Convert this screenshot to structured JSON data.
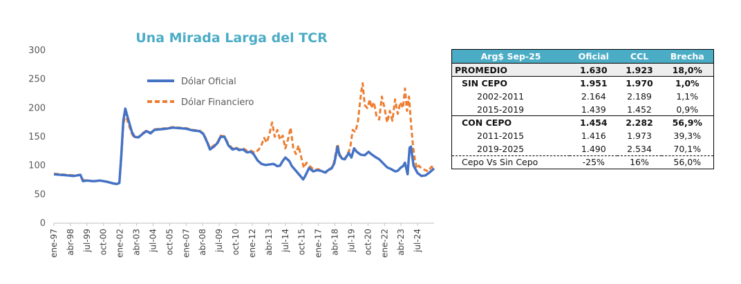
{
  "chart_data": {
    "type": "line",
    "title": "Una Mirada Larga del TCR",
    "title_color": "#4bacc6",
    "xlabel": "",
    "ylabel": "",
    "ylim": [
      0,
      300
    ],
    "yticks": [
      0,
      50,
      100,
      150,
      200,
      250,
      300
    ],
    "x_range": [
      1997.0,
      2025.75
    ],
    "x_ticks": [
      {
        "label": "ene-97",
        "year": 1997.0
      },
      {
        "label": "abr-98",
        "year": 1998.25
      },
      {
        "label": "jul-99",
        "year": 1999.5
      },
      {
        "label": "oct-00",
        "year": 2000.75
      },
      {
        "label": "ene-02",
        "year": 2002.0
      },
      {
        "label": "abr-03",
        "year": 2003.25
      },
      {
        "label": "jul-04",
        "year": 2004.5
      },
      {
        "label": "oct-05",
        "year": 2005.75
      },
      {
        "label": "ene-07",
        "year": 2007.0
      },
      {
        "label": "abr-08",
        "year": 2008.25
      },
      {
        "label": "jul-09",
        "year": 2009.5
      },
      {
        "label": "oct-10",
        "year": 2010.75
      },
      {
        "label": "ene-12",
        "year": 2012.0
      },
      {
        "label": "abr-13",
        "year": 2013.25
      },
      {
        "label": "jul-14",
        "year": 2014.5
      },
      {
        "label": "oct-15",
        "year": 2015.75
      },
      {
        "label": "ene-17",
        "year": 2017.0
      },
      {
        "label": "abr-18",
        "year": 2018.25
      },
      {
        "label": "jul-19",
        "year": 2019.5
      },
      {
        "label": "oct-20",
        "year": 2020.75
      },
      {
        "label": "ene-22",
        "year": 2022.0
      },
      {
        "label": "abr-23",
        "year": 2023.25
      },
      {
        "label": "jul-24",
        "year": 2024.5
      }
    ],
    "legend_position": "top-left",
    "grid": false,
    "series": [
      {
        "name": "Dólar Oficial",
        "color": "#4472c4",
        "style": "solid",
        "points": [
          [
            1997.0,
            85
          ],
          [
            1997.5,
            84
          ],
          [
            1998.0,
            83
          ],
          [
            1998.5,
            82
          ],
          [
            1999.0,
            84
          ],
          [
            1999.2,
            73
          ],
          [
            1999.5,
            74
          ],
          [
            2000.0,
            73
          ],
          [
            2000.5,
            74
          ],
          [
            2001.0,
            72
          ],
          [
            2001.5,
            69
          ],
          [
            2001.75,
            68
          ],
          [
            2001.95,
            70
          ],
          [
            2002.1,
            120
          ],
          [
            2002.25,
            178
          ],
          [
            2002.4,
            199
          ],
          [
            2002.6,
            182
          ],
          [
            2002.9,
            158
          ],
          [
            2003.1,
            150
          ],
          [
            2003.4,
            149
          ],
          [
            2003.7,
            155
          ],
          [
            2004.0,
            160
          ],
          [
            2004.3,
            156
          ],
          [
            2004.6,
            162
          ],
          [
            2005.0,
            163
          ],
          [
            2005.5,
            164
          ],
          [
            2006.0,
            166
          ],
          [
            2006.5,
            165
          ],
          [
            2007.0,
            164
          ],
          [
            2007.5,
            161
          ],
          [
            2008.0,
            160
          ],
          [
            2008.3,
            155
          ],
          [
            2008.6,
            140
          ],
          [
            2008.8,
            128
          ],
          [
            2009.1,
            133
          ],
          [
            2009.4,
            140
          ],
          [
            2009.6,
            150
          ],
          [
            2009.9,
            150
          ],
          [
            2010.2,
            135
          ],
          [
            2010.5,
            128
          ],
          [
            2010.8,
            130
          ],
          [
            2011.0,
            127
          ],
          [
            2011.3,
            128
          ],
          [
            2011.6,
            123
          ],
          [
            2011.9,
            124
          ],
          [
            2012.1,
            120
          ],
          [
            2012.4,
            109
          ],
          [
            2012.7,
            103
          ],
          [
            2013.0,
            101
          ],
          [
            2013.3,
            102
          ],
          [
            2013.6,
            103
          ],
          [
            2013.9,
            99
          ],
          [
            2014.1,
            100
          ],
          [
            2014.3,
            108
          ],
          [
            2014.5,
            114
          ],
          [
            2014.8,
            108
          ],
          [
            2015.0,
            99
          ],
          [
            2015.3,
            91
          ],
          [
            2015.6,
            83
          ],
          [
            2015.85,
            76
          ],
          [
            2016.0,
            82
          ],
          [
            2016.3,
            96
          ],
          [
            2016.6,
            90
          ],
          [
            2016.9,
            92
          ],
          [
            2017.2,
            91
          ],
          [
            2017.5,
            88
          ],
          [
            2017.8,
            93
          ],
          [
            2018.0,
            95
          ],
          [
            2018.2,
            104
          ],
          [
            2018.45,
            133
          ],
          [
            2018.6,
            118
          ],
          [
            2018.8,
            112
          ],
          [
            2019.0,
            111
          ],
          [
            2019.3,
            122
          ],
          [
            2019.5,
            114
          ],
          [
            2019.7,
            130
          ],
          [
            2019.9,
            124
          ],
          [
            2020.2,
            119
          ],
          [
            2020.5,
            118
          ],
          [
            2020.8,
            124
          ],
          [
            2021.0,
            120
          ],
          [
            2021.3,
            115
          ],
          [
            2021.6,
            111
          ],
          [
            2021.9,
            104
          ],
          [
            2022.2,
            97
          ],
          [
            2022.5,
            94
          ],
          [
            2022.8,
            90
          ],
          [
            2023.0,
            91
          ],
          [
            2023.25,
            97
          ],
          [
            2023.4,
            99
          ],
          [
            2023.55,
            105
          ],
          [
            2023.75,
            85
          ],
          [
            2023.9,
            131
          ],
          [
            2024.0,
            133
          ],
          [
            2024.2,
            100
          ],
          [
            2024.5,
            87
          ],
          [
            2024.8,
            82
          ],
          [
            2025.1,
            83
          ],
          [
            2025.4,
            88
          ],
          [
            2025.75,
            95
          ]
        ]
      },
      {
        "name": "Dólar Financiero",
        "color": "#ed7d31",
        "style": "dashed",
        "points": [
          [
            1997.0,
            86
          ],
          [
            1997.5,
            85
          ],
          [
            1998.0,
            84
          ],
          [
            1998.5,
            83
          ],
          [
            1999.0,
            84
          ],
          [
            1999.2,
            75
          ],
          [
            1999.5,
            74
          ],
          [
            2000.0,
            73
          ],
          [
            2000.5,
            74
          ],
          [
            2001.0,
            72
          ],
          [
            2001.5,
            69
          ],
          [
            2001.75,
            68
          ],
          [
            2001.95,
            70
          ],
          [
            2002.1,
            115
          ],
          [
            2002.25,
            170
          ],
          [
            2002.4,
            191
          ],
          [
            2002.6,
            175
          ],
          [
            2002.9,
            155
          ],
          [
            2003.1,
            148
          ],
          [
            2003.4,
            150
          ],
          [
            2003.7,
            156
          ],
          [
            2004.0,
            161
          ],
          [
            2004.3,
            157
          ],
          [
            2004.6,
            163
          ],
          [
            2005.0,
            164
          ],
          [
            2005.5,
            165
          ],
          [
            2006.0,
            167
          ],
          [
            2006.5,
            166
          ],
          [
            2007.0,
            165
          ],
          [
            2007.5,
            162
          ],
          [
            2008.0,
            161
          ],
          [
            2008.3,
            156
          ],
          [
            2008.6,
            142
          ],
          [
            2008.8,
            130
          ],
          [
            2009.1,
            135
          ],
          [
            2009.4,
            142
          ],
          [
            2009.6,
            152
          ],
          [
            2009.9,
            151
          ],
          [
            2010.2,
            137
          ],
          [
            2010.5,
            130
          ],
          [
            2010.8,
            131
          ],
          [
            2011.0,
            128
          ],
          [
            2011.3,
            130
          ],
          [
            2011.6,
            126
          ],
          [
            2011.9,
            126
          ],
          [
            2012.2,
            122
          ],
          [
            2012.5,
            128
          ],
          [
            2012.7,
            136
          ],
          [
            2012.9,
            148
          ],
          [
            2013.1,
            140
          ],
          [
            2013.3,
            155
          ],
          [
            2013.5,
            175
          ],
          [
            2013.7,
            150
          ],
          [
            2013.9,
            162
          ],
          [
            2014.1,
            145
          ],
          [
            2014.3,
            152
          ],
          [
            2014.5,
            130
          ],
          [
            2014.7,
            145
          ],
          [
            2014.9,
            166
          ],
          [
            2015.1,
            130
          ],
          [
            2015.3,
            120
          ],
          [
            2015.5,
            135
          ],
          [
            2015.7,
            115
          ],
          [
            2015.9,
            96
          ],
          [
            2016.1,
            105
          ],
          [
            2016.4,
            98
          ],
          [
            2016.7,
            92
          ],
          [
            2017.0,
            94
          ],
          [
            2017.3,
            90
          ],
          [
            2017.6,
            88
          ],
          [
            2017.9,
            95
          ],
          [
            2018.1,
            98
          ],
          [
            2018.3,
            120
          ],
          [
            2018.45,
            138
          ],
          [
            2018.6,
            120
          ],
          [
            2018.8,
            113
          ],
          [
            2019.0,
            112
          ],
          [
            2019.2,
            120
          ],
          [
            2019.4,
            130
          ],
          [
            2019.6,
            162
          ],
          [
            2019.8,
            158
          ],
          [
            2020.0,
            178
          ],
          [
            2020.1,
            200
          ],
          [
            2020.25,
            230
          ],
          [
            2020.35,
            243
          ],
          [
            2020.5,
            205
          ],
          [
            2020.7,
            200
          ],
          [
            2020.9,
            215
          ],
          [
            2021.0,
            200
          ],
          [
            2021.2,
            210
          ],
          [
            2021.4,
            185
          ],
          [
            2021.6,
            180
          ],
          [
            2021.8,
            220
          ],
          [
            2022.0,
            200
          ],
          [
            2022.2,
            175
          ],
          [
            2022.4,
            195
          ],
          [
            2022.6,
            178
          ],
          [
            2022.8,
            215
          ],
          [
            2023.0,
            190
          ],
          [
            2023.2,
            210
          ],
          [
            2023.4,
            200
          ],
          [
            2023.55,
            234
          ],
          [
            2023.7,
            195
          ],
          [
            2023.85,
            220
          ],
          [
            2024.0,
            175
          ],
          [
            2024.15,
            135
          ],
          [
            2024.3,
            110
          ],
          [
            2024.45,
            95
          ],
          [
            2024.6,
            100
          ],
          [
            2024.8,
            95
          ],
          [
            2025.0,
            93
          ],
          [
            2025.3,
            90
          ],
          [
            2025.55,
            98
          ],
          [
            2025.75,
            96
          ]
        ]
      }
    ]
  },
  "table": {
    "header": [
      "Arg$ Sep-25",
      "Oficial",
      "CCL",
      "Brecha"
    ],
    "rows": [
      {
        "label": "PROMEDIO",
        "oficial": "1.630",
        "ccl": "1.923",
        "brecha": "18,0%"
      },
      {
        "label": "SIN CEPO",
        "oficial": "1.951",
        "ccl": "1.970",
        "brecha": "1,0%"
      },
      {
        "label": "2002-2011",
        "oficial": "2.164",
        "ccl": "2.189",
        "brecha": "1,1%"
      },
      {
        "label": "2015-2019",
        "oficial": "1.439",
        "ccl": "1.452",
        "brecha": "0,9%"
      },
      {
        "label": "CON CEPO",
        "oficial": "1.454",
        "ccl": "2.282",
        "brecha": "56,9%"
      },
      {
        "label": "2011-2015",
        "oficial": "1.416",
        "ccl": "1.973",
        "brecha": "39,3%"
      },
      {
        "label": "2019-2025",
        "oficial": "1.490",
        "ccl": "2.534",
        "brecha": "70,1%"
      },
      {
        "label": "Cepo Vs Sin Cepo",
        "oficial": "-25%",
        "ccl": "16%",
        "brecha": "56,0%"
      }
    ],
    "header_color": "#4bacc6"
  }
}
